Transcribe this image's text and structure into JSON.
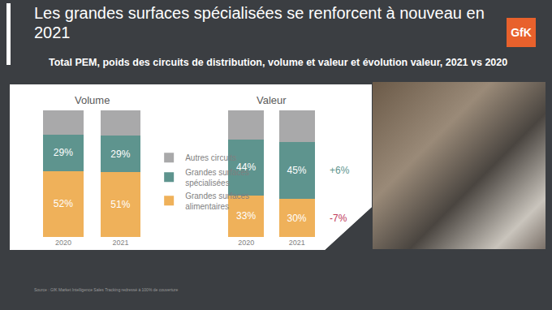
{
  "title": "Les grandes surfaces spécialisées se renforcent à nouveau en 2021",
  "subtitle": "Total PEM, poids des circuits de distribution, volume et valeur et évolution valeur, 2021 vs 2020",
  "logo": "GfK",
  "source": "Source : GfK Market Intelligence Sales Tracking redressé à 100% de couverture",
  "chart_data": [
    {
      "type": "bar",
      "title": "Volume",
      "stacked": true,
      "tick_labels": "x",
      "legend": "right",
      "categories": [
        "2020",
        "2021"
      ],
      "ylim": [
        0,
        100
      ],
      "series": [
        {
          "name": "Grandes surfaces alimentaires",
          "color": "#efb15a",
          "values": [
            52,
            51
          ],
          "value_labels": [
            "52%",
            "51%"
          ],
          "data_labels": true
        },
        {
          "name": "Grandes surfaces spécialisées",
          "color": "#5e948e",
          "values": [
            29,
            29
          ],
          "value_labels": [
            "29%",
            "29%"
          ],
          "data_labels": true
        },
        {
          "name": "Autres circuits",
          "color": "#a9a9aa",
          "values": [
            19,
            20
          ],
          "data_labels": false
        }
      ]
    },
    {
      "type": "bar",
      "title": "Valeur",
      "stacked": true,
      "tick_labels": "x",
      "categories": [
        "2020",
        "2021"
      ],
      "ylim": [
        0,
        100
      ],
      "series": [
        {
          "name": "Grandes surfaces alimentaires",
          "color": "#efb15a",
          "values": [
            33,
            30
          ],
          "value_labels": [
            "33%",
            "30%"
          ],
          "data_labels": true
        },
        {
          "name": "Grandes surfaces spécialisées",
          "color": "#5e948e",
          "values": [
            44,
            45
          ],
          "value_labels": [
            "44%",
            "45%"
          ],
          "data_labels": true
        },
        {
          "name": "Autres circuits",
          "color": "#a9a9aa",
          "values": [
            23,
            25
          ],
          "data_labels": false
        }
      ],
      "annotations": [
        {
          "text": "+6%",
          "series": "Grandes surfaces spécialisées",
          "color": "#5e948e"
        },
        {
          "text": "-7%",
          "series": "Grandes surfaces alimentaires",
          "color": "#c0395a"
        }
      ]
    }
  ]
}
